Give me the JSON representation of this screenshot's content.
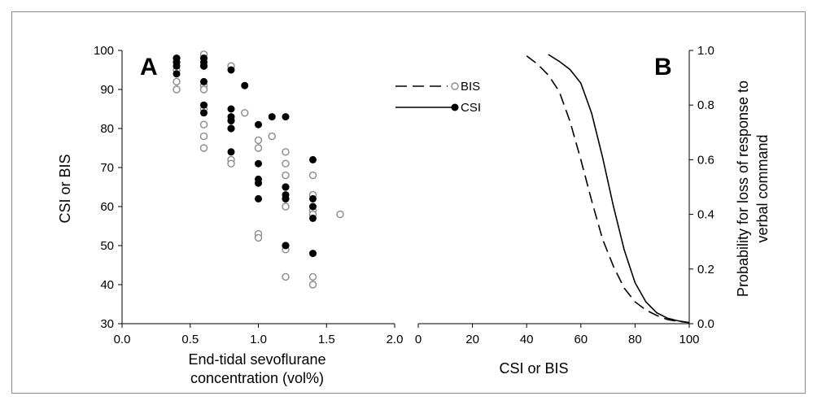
{
  "chart_data": [
    {
      "type": "scatter",
      "panel": "A",
      "xlabel": [
        "End-tidal sevoflurane",
        "concentration (vol%)"
      ],
      "ylabel": "CSI or BIS",
      "xlim": [
        0.0,
        2.0
      ],
      "ylim": [
        30,
        100
      ],
      "xticks": [
        "0.0",
        "0.5",
        "1.0",
        "1.5",
        "2.0"
      ],
      "yticks": [
        "30",
        "40",
        "50",
        "60",
        "70",
        "80",
        "90",
        "100"
      ],
      "series": [
        {
          "name": "BIS",
          "marker": "open-circle",
          "points": [
            [
              0.4,
              98
            ],
            [
              0.4,
              97
            ],
            [
              0.4,
              95
            ],
            [
              0.4,
              92
            ],
            [
              0.4,
              90
            ],
            [
              0.6,
              99
            ],
            [
              0.6,
              98
            ],
            [
              0.6,
              96
            ],
            [
              0.6,
              91
            ],
            [
              0.6,
              90
            ],
            [
              0.6,
              85
            ],
            [
              0.6,
              81
            ],
            [
              0.6,
              78
            ],
            [
              0.6,
              75
            ],
            [
              0.8,
              96
            ],
            [
              0.8,
              82
            ],
            [
              0.8,
              80
            ],
            [
              0.8,
              72
            ],
            [
              0.8,
              71
            ],
            [
              0.9,
              84
            ],
            [
              1.0,
              77
            ],
            [
              1.0,
              75
            ],
            [
              1.0,
              53
            ],
            [
              1.0,
              52
            ],
            [
              1.1,
              78
            ],
            [
              1.2,
              74
            ],
            [
              1.2,
              71
            ],
            [
              1.2,
              68
            ],
            [
              1.2,
              65
            ],
            [
              1.2,
              62
            ],
            [
              1.2,
              60
            ],
            [
              1.2,
              50
            ],
            [
              1.2,
              49
            ],
            [
              1.2,
              42
            ],
            [
              1.4,
              68
            ],
            [
              1.4,
              63
            ],
            [
              1.4,
              59
            ],
            [
              1.4,
              58
            ],
            [
              1.4,
              42
            ],
            [
              1.4,
              40
            ],
            [
              1.6,
              58
            ]
          ]
        },
        {
          "name": "CSI",
          "marker": "filled-circle",
          "points": [
            [
              0.4,
              98
            ],
            [
              0.4,
              97
            ],
            [
              0.4,
              96
            ],
            [
              0.4,
              94
            ],
            [
              0.6,
              98
            ],
            [
              0.6,
              97
            ],
            [
              0.6,
              96
            ],
            [
              0.6,
              92
            ],
            [
              0.6,
              86
            ],
            [
              0.6,
              84
            ],
            [
              0.8,
              95
            ],
            [
              0.8,
              85
            ],
            [
              0.8,
              83
            ],
            [
              0.8,
              82
            ],
            [
              0.8,
              80
            ],
            [
              0.8,
              74
            ],
            [
              0.9,
              91
            ],
            [
              1.0,
              81
            ],
            [
              1.0,
              71
            ],
            [
              1.0,
              67
            ],
            [
              1.0,
              66
            ],
            [
              1.0,
              62
            ],
            [
              1.1,
              83
            ],
            [
              1.2,
              83
            ],
            [
              1.2,
              65
            ],
            [
              1.2,
              63
            ],
            [
              1.2,
              62
            ],
            [
              1.2,
              50
            ],
            [
              1.4,
              72
            ],
            [
              1.4,
              62
            ],
            [
              1.4,
              60
            ],
            [
              1.4,
              57
            ],
            [
              1.4,
              48
            ]
          ]
        }
      ]
    },
    {
      "type": "line",
      "panel": "B",
      "xlabel": "CSI or BIS",
      "ylabel": [
        "Probability for loss of response to",
        "verbal command"
      ],
      "xlim": [
        0,
        100
      ],
      "ylim": [
        0.0,
        1.0
      ],
      "xticks": [
        "0",
        "20",
        "40",
        "60",
        "80",
        "100"
      ],
      "yticks": [
        "0.0",
        "0.2",
        "0.4",
        "0.6",
        "0.8",
        "1.0"
      ],
      "series": [
        {
          "name": "BIS",
          "line": "dashed",
          "x": [
            40,
            44,
            48,
            52,
            56,
            60,
            64,
            68,
            72,
            76,
            80,
            84,
            88,
            92,
            96,
            100
          ],
          "y": [
            0.98,
            0.95,
            0.91,
            0.85,
            0.74,
            0.6,
            0.45,
            0.31,
            0.21,
            0.13,
            0.08,
            0.05,
            0.03,
            0.015,
            0.008,
            0.004
          ]
        },
        {
          "name": "CSI",
          "line": "solid",
          "x": [
            48,
            52,
            56,
            60,
            64,
            68,
            72,
            76,
            80,
            84,
            88,
            92,
            96,
            100
          ],
          "y": [
            0.985,
            0.96,
            0.93,
            0.88,
            0.77,
            0.61,
            0.43,
            0.27,
            0.15,
            0.08,
            0.04,
            0.02,
            0.01,
            0.004
          ]
        }
      ]
    }
  ],
  "legend": [
    {
      "name": "BIS",
      "line": "dashed",
      "marker": "open-circle"
    },
    {
      "name": "CSI",
      "line": "solid",
      "marker": "filled-circle"
    }
  ]
}
